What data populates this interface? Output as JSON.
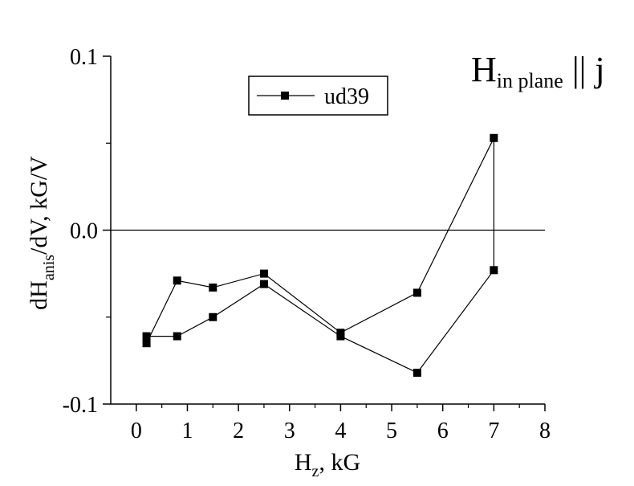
{
  "chart_data": {
    "type": "line",
    "xlabel": {
      "main": "H",
      "sub": "z",
      "rest": ", kG"
    },
    "ylabel": {
      "main": "dH",
      "sub": "anis",
      "rest": "/dV, kG/V"
    },
    "xlim": [
      -0.5,
      8
    ],
    "ylim": [
      -0.1,
      0.1
    ],
    "xticks": [
      "0",
      "1",
      "2",
      "3",
      "4",
      "5",
      "6",
      "7",
      "8"
    ],
    "xtick_values": [
      0,
      1,
      2,
      3,
      4,
      5,
      6,
      7,
      8
    ],
    "yticks": [
      "-0.1",
      "0.0",
      "0.1"
    ],
    "ytick_values": [
      -0.1,
      0,
      0.1
    ],
    "reference_line": 0,
    "annotation": {
      "main": "H",
      "sub": "in plane",
      "rest": " || j"
    },
    "legend": {
      "position": "top-center",
      "entries": [
        "ud39"
      ]
    },
    "series": [
      {
        "name": "ud39",
        "color": "#000000",
        "marker": "square",
        "x": [
          0.2,
          0.8,
          1.5,
          2.5,
          4.0,
          5.5,
          7.0,
          7.0,
          5.5,
          4.0,
          2.5,
          1.5,
          0.8,
          0.2
        ],
        "y": [
          -0.065,
          -0.029,
          -0.033,
          -0.025,
          -0.059,
          -0.036,
          0.053,
          -0.023,
          -0.082,
          -0.061,
          -0.031,
          -0.05,
          -0.061,
          -0.061
        ]
      }
    ]
  }
}
